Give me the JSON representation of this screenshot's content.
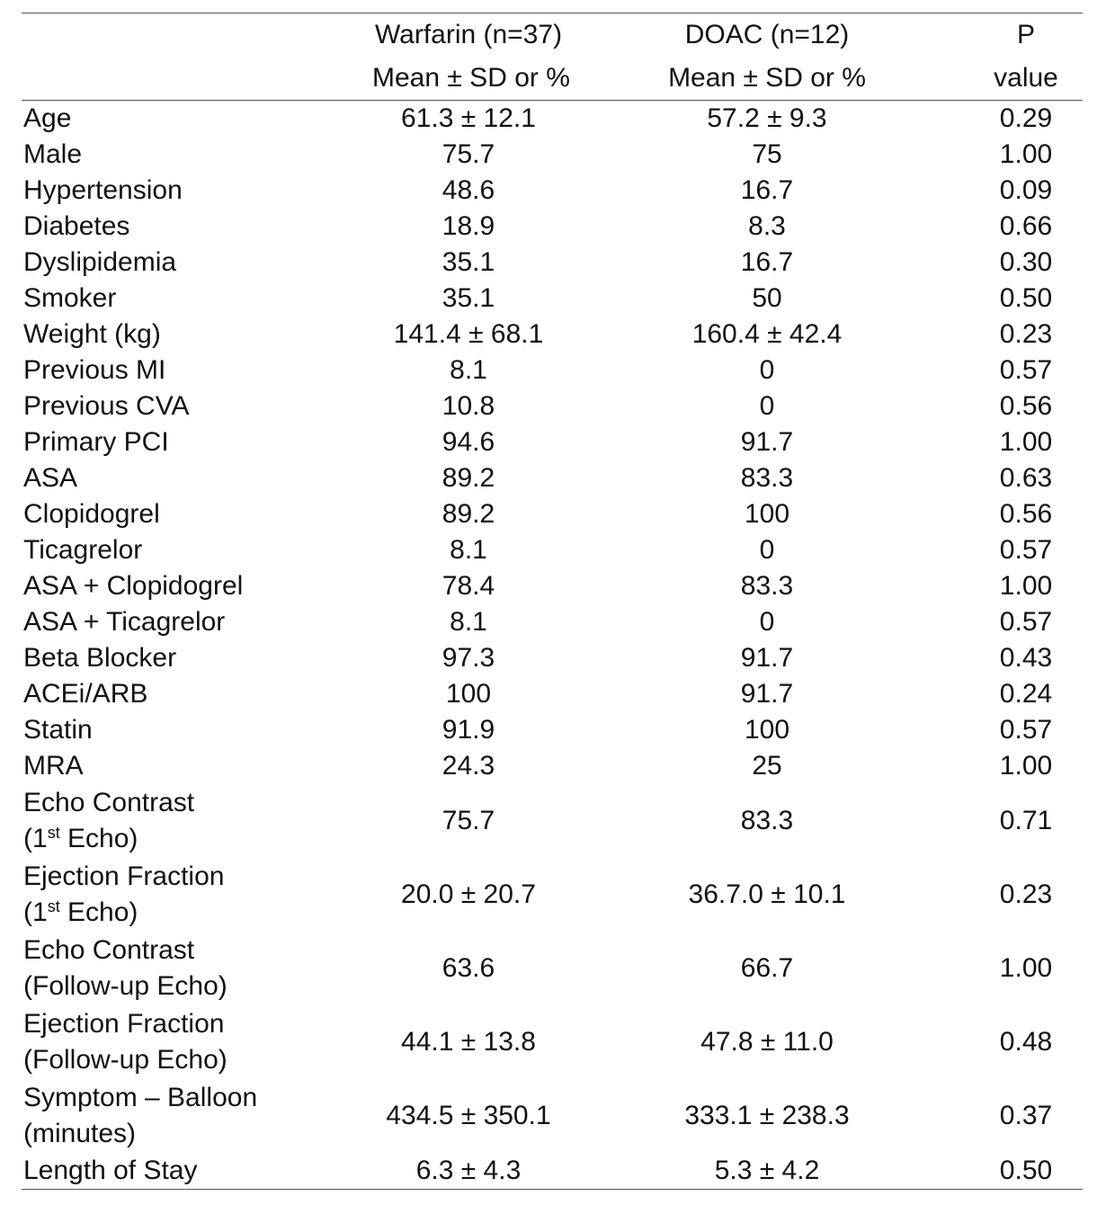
{
  "table": {
    "columns": [
      {
        "line1": "",
        "line2": ""
      },
      {
        "line1": "Warfarin (n=37)",
        "line2": "Mean ± SD or %"
      },
      {
        "line1": "DOAC (n=12)",
        "line2": "Mean ± SD or %"
      },
      {
        "line1": "P",
        "line2": "value"
      }
    ],
    "rows": [
      {
        "label": [
          "Age"
        ],
        "warfarin": "61.3 ± 12.1",
        "doac": "57.2 ± 9.3",
        "p": "0.29"
      },
      {
        "label": [
          "Male"
        ],
        "warfarin": "75.7",
        "doac": "75",
        "p": "1.00"
      },
      {
        "label": [
          "Hypertension"
        ],
        "warfarin": "48.6",
        "doac": "16.7",
        "p": "0.09"
      },
      {
        "label": [
          "Diabetes"
        ],
        "warfarin": "18.9",
        "doac": "8.3",
        "p": "0.66"
      },
      {
        "label": [
          "Dyslipidemia"
        ],
        "warfarin": "35.1",
        "doac": "16.7",
        "p": "0.30"
      },
      {
        "label": [
          "Smoker"
        ],
        "warfarin": "35.1",
        "doac": "50",
        "p": "0.50"
      },
      {
        "label": [
          "Weight (kg)"
        ],
        "warfarin": "141.4 ± 68.1",
        "doac": "160.4 ± 42.4",
        "p": "0.23"
      },
      {
        "label": [
          "Previous MI"
        ],
        "warfarin": "8.1",
        "doac": "0",
        "p": "0.57"
      },
      {
        "label": [
          "Previous CVA"
        ],
        "warfarin": "10.8",
        "doac": "0",
        "p": "0.56"
      },
      {
        "label": [
          "Primary PCI"
        ],
        "warfarin": "94.6",
        "doac": "91.7",
        "p": "1.00"
      },
      {
        "label": [
          "ASA"
        ],
        "warfarin": "89.2",
        "doac": "83.3",
        "p": "0.63"
      },
      {
        "label": [
          "Clopidogrel"
        ],
        "warfarin": "89.2",
        "doac": "100",
        "p": "0.56"
      },
      {
        "label": [
          "Ticagrelor"
        ],
        "warfarin": "8.1",
        "doac": "0",
        "p": "0.57"
      },
      {
        "label": [
          "ASA + Clopidogrel"
        ],
        "warfarin": "78.4",
        "doac": "83.3",
        "p": "1.00"
      },
      {
        "label": [
          "ASA + Ticagrelor"
        ],
        "warfarin": "8.1",
        "doac": "0",
        "p": "0.57"
      },
      {
        "label": [
          "Beta Blocker"
        ],
        "warfarin": "97.3",
        "doac": "91.7",
        "p": "0.43"
      },
      {
        "label": [
          "ACEi/ARB"
        ],
        "warfarin": "100",
        "doac": "91.7",
        "p": "0.24"
      },
      {
        "label": [
          "Statin"
        ],
        "warfarin": "91.9",
        "doac": "100",
        "p": "0.57"
      },
      {
        "label": [
          "MRA"
        ],
        "warfarin": "24.3",
        "doac": "25",
        "p": "1.00"
      },
      {
        "label": [
          "Echo Contrast",
          "(1st Echo)"
        ],
        "warfarin": "75.7",
        "doac": "83.3",
        "p": "0.71"
      },
      {
        "label": [
          "Ejection Fraction",
          "(1st Echo)"
        ],
        "warfarin": "20.0 ± 20.7",
        "doac": "36.7.0 ± 10.1",
        "p": "0.23"
      },
      {
        "label": [
          "Echo Contrast",
          "(Follow-up Echo)"
        ],
        "warfarin": "63.6",
        "doac": "66.7",
        "p": "1.00"
      },
      {
        "label": [
          "Ejection Fraction",
          "(Follow-up Echo)"
        ],
        "warfarin": "44.1 ± 13.8",
        "doac": "47.8 ± 11.0",
        "p": "0.48"
      },
      {
        "label": [
          "Symptom – Balloon",
          "(minutes)"
        ],
        "warfarin": "434.5 ± 350.1",
        "doac": "333.1 ± 238.3",
        "p": "0.37"
      },
      {
        "label": [
          "Length of Stay"
        ],
        "warfarin": "6.3 ± 4.3",
        "doac": "5.3 ± 4.2",
        "p": "0.50"
      }
    ]
  }
}
